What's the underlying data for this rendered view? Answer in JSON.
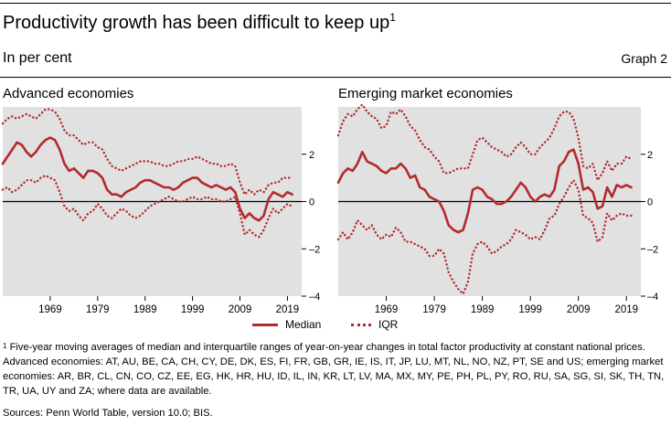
{
  "header": {
    "title": "Productivity growth has been difficult to keep up",
    "title_note": "1",
    "subtitle": "In per cent",
    "graph_number": "Graph 2"
  },
  "colors": {
    "series": "#b32a2e",
    "panel_bg": "#e1e1e1",
    "zero_line": "#000000"
  },
  "chart_data": [
    {
      "type": "line",
      "title": "Advanced economies",
      "x_ticks": [
        1969,
        1979,
        1989,
        1999,
        2009,
        2019
      ],
      "y_ticks": [
        2,
        0,
        -2,
        -4
      ],
      "y_tick_labels": [
        "2",
        "0",
        "–2",
        "–4"
      ],
      "xlim": [
        1959,
        2022
      ],
      "ylim": [
        -4,
        4
      ],
      "series": [
        {
          "name": "Median",
          "style": "solid",
          "x": [
            1959,
            1960,
            1961,
            1962,
            1963,
            1964,
            1965,
            1966,
            1967,
            1968,
            1969,
            1970,
            1971,
            1972,
            1973,
            1974,
            1975,
            1976,
            1977,
            1978,
            1979,
            1980,
            1981,
            1982,
            1983,
            1984,
            1985,
            1986,
            1987,
            1988,
            1989,
            1990,
            1991,
            1992,
            1993,
            1994,
            1995,
            1996,
            1997,
            1998,
            1999,
            2000,
            2001,
            2002,
            2003,
            2004,
            2005,
            2006,
            2007,
            2008,
            2009,
            2010,
            2011,
            2012,
            2013,
            2014,
            2015,
            2016,
            2017,
            2018,
            2019,
            2020
          ],
          "values": [
            1.6,
            1.9,
            2.2,
            2.5,
            2.4,
            2.1,
            1.9,
            2.1,
            2.4,
            2.6,
            2.7,
            2.6,
            2.2,
            1.6,
            1.3,
            1.4,
            1.2,
            1.0,
            1.3,
            1.3,
            1.2,
            1.0,
            0.5,
            0.3,
            0.3,
            0.2,
            0.4,
            0.5,
            0.6,
            0.8,
            0.9,
            0.9,
            0.8,
            0.7,
            0.6,
            0.6,
            0.5,
            0.6,
            0.8,
            0.9,
            1.0,
            1.0,
            0.8,
            0.7,
            0.6,
            0.7,
            0.6,
            0.5,
            0.6,
            0.4,
            -0.3,
            -0.7,
            -0.5,
            -0.7,
            -0.8,
            -0.6,
            0.1,
            0.4,
            0.3,
            0.2,
            0.4,
            0.3
          ]
        },
        {
          "name": "IQR lower",
          "style": "dotted",
          "x": [
            1959,
            1960,
            1961,
            1962,
            1963,
            1964,
            1965,
            1966,
            1967,
            1968,
            1969,
            1970,
            1971,
            1972,
            1973,
            1974,
            1975,
            1976,
            1977,
            1978,
            1979,
            1980,
            1981,
            1982,
            1983,
            1984,
            1985,
            1986,
            1987,
            1988,
            1989,
            1990,
            1991,
            1992,
            1993,
            1994,
            1995,
            1996,
            1997,
            1998,
            1999,
            2000,
            2001,
            2002,
            2003,
            2004,
            2005,
            2006,
            2007,
            2008,
            2009,
            2010,
            2011,
            2012,
            2013,
            2014,
            2015,
            2016,
            2017,
            2018,
            2019,
            2020
          ],
          "values": [
            0.5,
            0.6,
            0.4,
            0.5,
            0.7,
            0.9,
            0.9,
            0.8,
            1.0,
            1.1,
            1.0,
            0.9,
            0.4,
            -0.2,
            -0.4,
            -0.3,
            -0.6,
            -0.8,
            -0.5,
            -0.4,
            -0.1,
            -0.3,
            -0.6,
            -0.7,
            -0.5,
            -0.3,
            -0.4,
            -0.6,
            -0.7,
            -0.6,
            -0.4,
            -0.2,
            -0.1,
            0.0,
            0.1,
            0.2,
            0.1,
            0.0,
            0.0,
            0.1,
            0.2,
            0.1,
            0.1,
            0.2,
            0.1,
            0.1,
            0.0,
            0.0,
            0.1,
            0.2,
            -0.5,
            -1.4,
            -1.2,
            -1.4,
            -1.5,
            -1.2,
            -0.7,
            -0.3,
            -0.5,
            -0.3,
            -0.1,
            -0.2
          ]
        },
        {
          "name": "IQR upper",
          "style": "dotted",
          "x": [
            1959,
            1960,
            1961,
            1962,
            1963,
            1964,
            1965,
            1966,
            1967,
            1968,
            1969,
            1970,
            1971,
            1972,
            1973,
            1974,
            1975,
            1976,
            1977,
            1978,
            1979,
            1980,
            1981,
            1982,
            1983,
            1984,
            1985,
            1986,
            1987,
            1988,
            1989,
            1990,
            1991,
            1992,
            1993,
            1994,
            1995,
            1996,
            1997,
            1998,
            1999,
            2000,
            2001,
            2002,
            2003,
            2004,
            2005,
            2006,
            2007,
            2008,
            2009,
            2010,
            2011,
            2012,
            2013,
            2014,
            2015,
            2016,
            2017,
            2018,
            2019,
            2020
          ],
          "values": [
            3.3,
            3.5,
            3.6,
            3.5,
            3.6,
            3.7,
            3.6,
            3.5,
            3.7,
            3.9,
            3.9,
            3.8,
            3.5,
            3.0,
            2.8,
            2.8,
            2.6,
            2.4,
            2.5,
            2.5,
            2.3,
            2.2,
            1.8,
            1.5,
            1.4,
            1.3,
            1.4,
            1.5,
            1.6,
            1.7,
            1.7,
            1.7,
            1.6,
            1.6,
            1.5,
            1.5,
            1.6,
            1.7,
            1.7,
            1.8,
            1.8,
            1.9,
            1.8,
            1.7,
            1.6,
            1.6,
            1.5,
            1.5,
            1.6,
            1.5,
            0.8,
            0.3,
            0.5,
            0.3,
            0.5,
            0.4,
            0.7,
            0.8,
            0.8,
            1.0,
            1.0,
            1.0
          ]
        }
      ]
    },
    {
      "type": "line",
      "title": "Emerging market economies",
      "x_ticks": [
        1969,
        1979,
        1989,
        1999,
        2009,
        2019
      ],
      "y_ticks": [
        2,
        0,
        -2,
        -4
      ],
      "y_tick_labels": [
        "2",
        "0",
        "–2",
        "–4"
      ],
      "xlim": [
        1959,
        2022
      ],
      "ylim": [
        -4,
        4
      ],
      "series": [
        {
          "name": "Median",
          "style": "solid",
          "x": [
            1959,
            1960,
            1961,
            1962,
            1963,
            1964,
            1965,
            1966,
            1967,
            1968,
            1969,
            1970,
            1971,
            1972,
            1973,
            1974,
            1975,
            1976,
            1977,
            1978,
            1979,
            1980,
            1981,
            1982,
            1983,
            1984,
            1985,
            1986,
            1987,
            1988,
            1989,
            1990,
            1991,
            1992,
            1993,
            1994,
            1995,
            1996,
            1997,
            1998,
            1999,
            2000,
            2001,
            2002,
            2003,
            2004,
            2005,
            2006,
            2007,
            2008,
            2009,
            2010,
            2011,
            2012,
            2013,
            2014,
            2015,
            2016,
            2017,
            2018,
            2019,
            2020
          ],
          "values": [
            0.8,
            1.2,
            1.4,
            1.3,
            1.6,
            2.1,
            1.7,
            1.6,
            1.5,
            1.3,
            1.2,
            1.4,
            1.4,
            1.6,
            1.4,
            1.0,
            1.1,
            0.6,
            0.5,
            0.2,
            0.1,
            0.0,
            -0.4,
            -1.0,
            -1.2,
            -1.3,
            -1.2,
            -0.5,
            0.5,
            0.6,
            0.5,
            0.2,
            0.1,
            -0.1,
            -0.1,
            0.0,
            0.2,
            0.5,
            0.8,
            0.6,
            0.2,
            0.0,
            0.2,
            0.3,
            0.2,
            0.5,
            1.5,
            1.7,
            2.1,
            2.2,
            1.6,
            0.5,
            0.6,
            0.4,
            -0.3,
            -0.2,
            0.6,
            0.2,
            0.7,
            0.6,
            0.7,
            0.6
          ]
        },
        {
          "name": "IQR lower",
          "style": "dotted",
          "x": [
            1959,
            1960,
            1961,
            1962,
            1963,
            1964,
            1965,
            1966,
            1967,
            1968,
            1969,
            1970,
            1971,
            1972,
            1973,
            1974,
            1975,
            1976,
            1977,
            1978,
            1979,
            1980,
            1981,
            1982,
            1983,
            1984,
            1985,
            1986,
            1987,
            1988,
            1989,
            1990,
            1991,
            1992,
            1993,
            1994,
            1995,
            1996,
            1997,
            1998,
            1999,
            2000,
            2001,
            2002,
            2003,
            2004,
            2005,
            2006,
            2007,
            2008,
            2009,
            2010,
            2011,
            2012,
            2013,
            2014,
            2015,
            2016,
            2017,
            2018,
            2019,
            2020
          ],
          "values": [
            -1.6,
            -1.3,
            -1.6,
            -1.3,
            -0.8,
            -1.0,
            -1.2,
            -1.0,
            -1.4,
            -1.6,
            -1.4,
            -1.5,
            -1.1,
            -1.3,
            -1.7,
            -1.7,
            -1.8,
            -1.9,
            -2.0,
            -2.3,
            -2.3,
            -2.0,
            -2.2,
            -3.0,
            -3.4,
            -3.7,
            -3.9,
            -3.4,
            -2.2,
            -1.8,
            -1.7,
            -1.9,
            -2.2,
            -2.1,
            -1.9,
            -1.8,
            -1.6,
            -1.2,
            -1.3,
            -1.4,
            -1.6,
            -1.5,
            -1.6,
            -1.2,
            -0.7,
            -0.6,
            -0.1,
            0.2,
            0.6,
            0.9,
            0.5,
            -0.6,
            -0.7,
            -0.9,
            -1.7,
            -1.5,
            -0.5,
            -0.8,
            -0.6,
            -0.5,
            -0.6,
            -0.6
          ]
        },
        {
          "name": "IQR upper",
          "style": "dotted",
          "x": [
            1959,
            1960,
            1961,
            1962,
            1963,
            1964,
            1965,
            1966,
            1967,
            1968,
            1969,
            1970,
            1971,
            1972,
            1973,
            1974,
            1975,
            1976,
            1977,
            1978,
            1979,
            1980,
            1981,
            1982,
            1983,
            1984,
            1985,
            1986,
            1987,
            1988,
            1989,
            1990,
            1991,
            1992,
            1993,
            1994,
            1995,
            1996,
            1997,
            1998,
            1999,
            2000,
            2001,
            2002,
            2003,
            2004,
            2005,
            2006,
            2007,
            2008,
            2009,
            2010,
            2011,
            2012,
            2013,
            2014,
            2015,
            2016,
            2017,
            2018,
            2019,
            2020
          ],
          "values": [
            2.8,
            3.4,
            3.7,
            3.6,
            3.9,
            4.1,
            3.8,
            3.6,
            3.5,
            3.1,
            3.2,
            3.8,
            3.7,
            3.9,
            3.6,
            3.2,
            3.0,
            2.6,
            2.3,
            2.2,
            1.9,
            1.7,
            1.2,
            1.2,
            1.3,
            1.4,
            1.4,
            1.4,
            2.0,
            2.6,
            2.7,
            2.5,
            2.3,
            2.2,
            2.1,
            1.9,
            2.0,
            2.3,
            2.5,
            2.3,
            2.0,
            2.0,
            2.3,
            2.5,
            2.7,
            3.1,
            3.6,
            3.8,
            3.8,
            3.5,
            2.7,
            1.5,
            1.4,
            1.6,
            0.9,
            1.2,
            1.7,
            1.3,
            1.6,
            1.6,
            1.9,
            1.8
          ]
        }
      ]
    }
  ],
  "legend": {
    "median_label": "Median",
    "iqr_label": "IQR"
  },
  "footnote": {
    "marker": "1",
    "text": "Five-year moving averages of median and interquartile ranges of year-on-year changes in total factor productivity at constant national prices. Advanced economies: AT, AU, BE, CA, CH, CY, DE, DK, ES, FI, FR, GB, GR, IE, IS, IT, JP, LU, MT, NL, NO, NZ, PT, SE and US; emerging market economies: AR, BR, CL, CN, CO, CZ, EE, EG, HK, HR, HU, ID, IL, IN, KR, LT, LV, MA, MX, MY, PE, PH, PL, PY, RO, RU, SA, SG, SI, SK, TH, TN, TR, UA, UY and ZA; where data are available."
  },
  "sources": "Sources: Penn World Table, version 10.0; BIS."
}
